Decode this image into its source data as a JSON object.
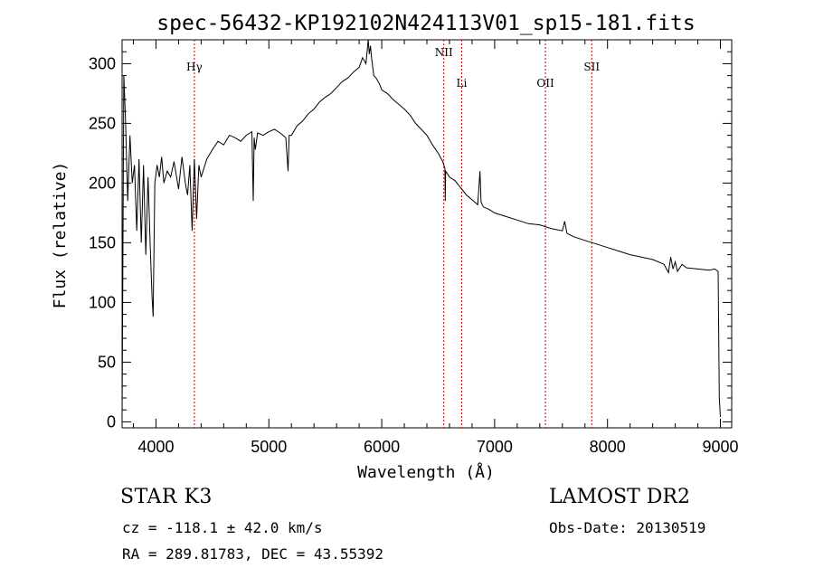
{
  "chart_data": {
    "type": "line",
    "title": "spec-56432-KP192102N424113V01_sp15-181.fits",
    "xlabel": "Wavelength (Å)",
    "ylabel": "Flux (relative)",
    "xlim": [
      3700,
      9100
    ],
    "ylim": [
      -5,
      320
    ],
    "x_ticks": [
      4000,
      5000,
      6000,
      7000,
      8000,
      9000
    ],
    "y_ticks": [
      0,
      50,
      100,
      150,
      200,
      250,
      300
    ],
    "grid": false,
    "series": [
      {
        "x": [
          3700,
          3715,
          3730,
          3750,
          3770,
          3790,
          3810,
          3830,
          3850,
          3870,
          3890,
          3910,
          3930,
          3950,
          3965,
          3975,
          3990,
          4010,
          4030,
          4050,
          4070,
          4100,
          4130,
          4160,
          4200,
          4230,
          4260,
          4280,
          4300,
          4320,
          4340,
          4360,
          4380,
          4400,
          4450,
          4500,
          4550,
          4600,
          4650,
          4700,
          4750,
          4800,
          4850,
          4862,
          4870,
          4880,
          4900,
          4950,
          5000,
          5050,
          5100,
          5150,
          5170,
          5180,
          5200,
          5250,
          5300,
          5350,
          5400,
          5450,
          5500,
          5550,
          5600,
          5650,
          5700,
          5750,
          5800,
          5830,
          5860,
          5880,
          5890,
          5900,
          5910,
          5930,
          5950,
          5980,
          6000,
          6050,
          6100,
          6150,
          6200,
          6250,
          6300,
          6350,
          6400,
          6450,
          6500,
          6540,
          6560,
          6563,
          6566,
          6580,
          6600,
          6650,
          6700,
          6750,
          6800,
          6850,
          6870,
          6880,
          6900,
          6950,
          7000,
          7100,
          7200,
          7300,
          7400,
          7500,
          7600,
          7620,
          7640,
          7700,
          7800,
          7900,
          8000,
          8100,
          8200,
          8300,
          8400,
          8500,
          8540,
          8560,
          8580,
          8600,
          8620,
          8660,
          8700,
          8800,
          8900,
          8950,
          8980,
          8990,
          9000
        ],
        "y": [
          5,
          290,
          255,
          185,
          240,
          200,
          215,
          160,
          220,
          150,
          215,
          140,
          205,
          145,
          105,
          88,
          200,
          215,
          205,
          222,
          200,
          210,
          205,
          218,
          195,
          222,
          200,
          190,
          215,
          160,
          220,
          170,
          215,
          205,
          220,
          228,
          235,
          232,
          240,
          238,
          235,
          240,
          243,
          185,
          238,
          228,
          242,
          240,
          243,
          245,
          242,
          238,
          210,
          240,
          240,
          248,
          252,
          258,
          262,
          268,
          272,
          275,
          280,
          285,
          288,
          293,
          297,
          305,
          300,
          320,
          308,
          315,
          305,
          290,
          288,
          283,
          278,
          275,
          270,
          266,
          262,
          257,
          250,
          245,
          240,
          232,
          225,
          218,
          212,
          185,
          210,
          208,
          205,
          202,
          196,
          190,
          186,
          182,
          210,
          184,
          180,
          178,
          175,
          172,
          169,
          166,
          165,
          162,
          160,
          168,
          158,
          155,
          152,
          149,
          146,
          143,
          140,
          138,
          136,
          132,
          125,
          138,
          128,
          134,
          126,
          132,
          129,
          128,
          127,
          128,
          126,
          20,
          4
        ],
        "color": "#000000"
      }
    ],
    "lines": [
      {
        "label": "Hγ",
        "x": 4340,
        "color": "#cc0000"
      },
      {
        "label": "NII",
        "x": 6550,
        "color": "#cc0000"
      },
      {
        "label": "Li",
        "x": 6708,
        "color": "#cc0000"
      },
      {
        "label": "OII",
        "x": 7450,
        "color": "#cc0000"
      },
      {
        "label": "SII",
        "x": 7860,
        "color": "#cc0000"
      }
    ]
  },
  "info": {
    "object_class": "STAR    K3",
    "survey": "LAMOST DR2",
    "cz": "cz = -118.1 ± 42.0 km/s",
    "obs_date": "Obs-Date: 20130519",
    "radec": "RA = 289.81783, DEC =  43.55392"
  }
}
